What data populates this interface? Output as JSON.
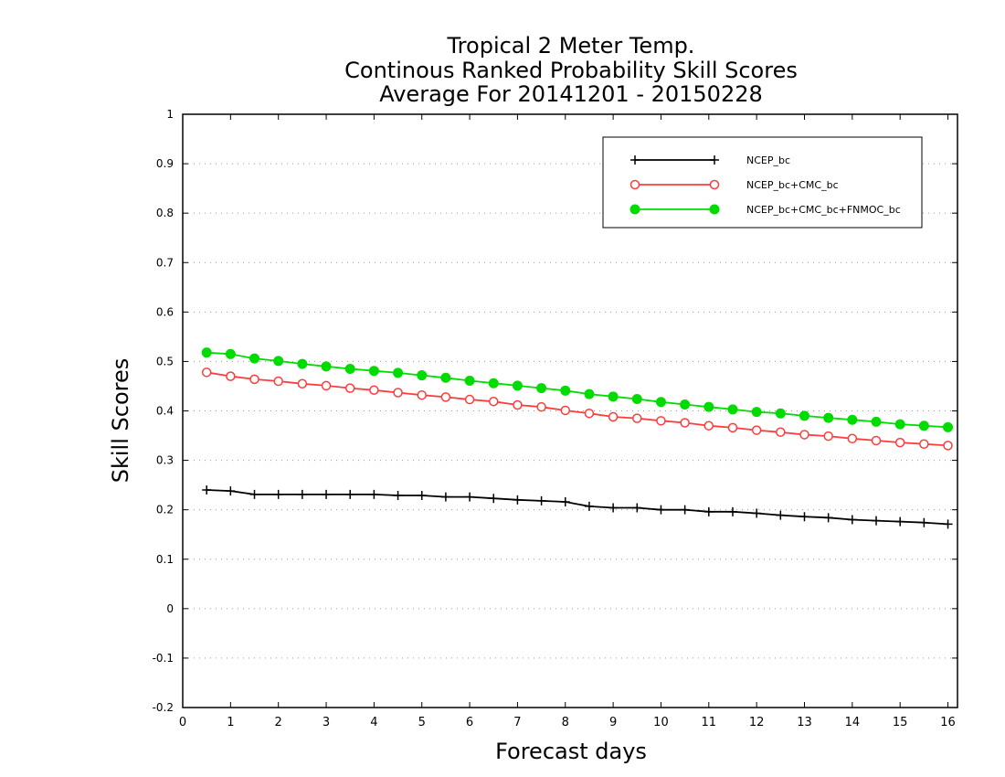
{
  "chart_data": {
    "type": "line",
    "title_lines": [
      "Tropical 2 Meter Temp.",
      "Continous Ranked Probability Skill Scores",
      "Average For 20141201 - 20150228"
    ],
    "xlabel": "Forecast days",
    "ylabel": "Skill Scores",
    "xlim": [
      0,
      16.2
    ],
    "ylim": [
      -0.2,
      1
    ],
    "x_ticks": [
      0,
      1,
      2,
      3,
      4,
      5,
      6,
      7,
      8,
      9,
      10,
      11,
      12,
      13,
      14,
      15,
      16
    ],
    "y_ticks": [
      -0.2,
      -0.1,
      0,
      0.1,
      0.2,
      0.3,
      0.4,
      0.5,
      0.6,
      0.7,
      0.8,
      0.9,
      1
    ],
    "y_tick_labels": [
      "-0.2",
      "-0.1",
      "0",
      "0.1",
      "0.2",
      "0.3",
      "0.4",
      "0.5",
      "0.6",
      "0.7",
      "0.8",
      "0.9",
      "1"
    ],
    "grid": "horizontal dotted",
    "legend_position": "top-right",
    "x": [
      0.5,
      1.0,
      1.5,
      2.0,
      2.5,
      3.0,
      3.5,
      4.0,
      4.5,
      5.0,
      5.5,
      6.0,
      6.5,
      7.0,
      7.5,
      8.0,
      8.5,
      9.0,
      9.5,
      10.0,
      10.5,
      11.0,
      11.5,
      12.0,
      12.5,
      13.0,
      13.5,
      14.0,
      14.5,
      15.0,
      15.5,
      16.0
    ],
    "series": [
      {
        "name": "NCEP_bc",
        "color": "#000000",
        "marker": "plus",
        "values": [
          0.24,
          0.238,
          0.231,
          0.231,
          0.231,
          0.231,
          0.231,
          0.231,
          0.229,
          0.229,
          0.226,
          0.226,
          0.223,
          0.22,
          0.218,
          0.216,
          0.207,
          0.204,
          0.204,
          0.2,
          0.2,
          0.196,
          0.196,
          0.193,
          0.189,
          0.186,
          0.184,
          0.18,
          0.178,
          0.176,
          0.174,
          0.171
        ]
      },
      {
        "name": "NCEP_bc+CMC_bc",
        "color": "#ff3c3c",
        "marker": "open-circle",
        "values": [
          0.478,
          0.47,
          0.464,
          0.46,
          0.455,
          0.451,
          0.446,
          0.442,
          0.437,
          0.432,
          0.428,
          0.423,
          0.419,
          0.412,
          0.408,
          0.401,
          0.395,
          0.388,
          0.385,
          0.38,
          0.376,
          0.37,
          0.366,
          0.361,
          0.357,
          0.352,
          0.349,
          0.344,
          0.34,
          0.336,
          0.333,
          0.33
        ]
      },
      {
        "name": "NCEP_bc+CMC_bc+FNMOC_bc",
        "color": "#00dc00",
        "marker": "filled-circle",
        "values": [
          0.518,
          0.515,
          0.506,
          0.501,
          0.495,
          0.49,
          0.485,
          0.481,
          0.477,
          0.472,
          0.467,
          0.461,
          0.456,
          0.451,
          0.446,
          0.441,
          0.434,
          0.429,
          0.424,
          0.418,
          0.413,
          0.408,
          0.403,
          0.398,
          0.395,
          0.39,
          0.386,
          0.382,
          0.378,
          0.373,
          0.37,
          0.367
        ]
      }
    ]
  }
}
